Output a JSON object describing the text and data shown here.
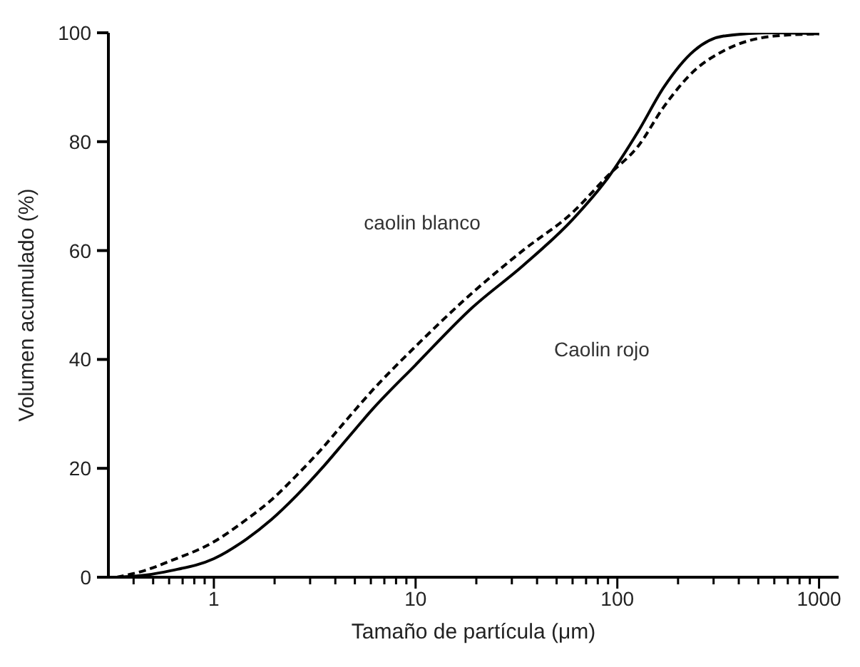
{
  "chart_data": {
    "type": "line",
    "xlabel": "Tamaño de partícula (μm)",
    "ylabel": "Volumen acumulado (%)",
    "log": "x",
    "grid": false,
    "legend": false,
    "marker": "none",
    "xlim": [
      0.3,
      1250
    ],
    "ylim": [
      0,
      100
    ],
    "xticks": [
      {
        "value": 0.4,
        "label": null
      },
      {
        "value": 0.5,
        "label": null
      },
      {
        "value": 0.6,
        "label": null
      },
      {
        "value": 0.7,
        "label": null
      },
      {
        "value": 0.8,
        "label": null
      },
      {
        "value": 0.9,
        "label": null
      },
      1,
      {
        "value": 2,
        "label": null
      },
      {
        "value": 3,
        "label": null
      },
      {
        "value": 4,
        "label": null
      },
      {
        "value": 5,
        "label": null
      },
      {
        "value": 6,
        "label": null
      },
      {
        "value": 7,
        "label": null
      },
      {
        "value": 8,
        "label": null
      },
      {
        "value": 9,
        "label": null
      },
      10,
      {
        "value": 20,
        "label": null
      },
      {
        "value": 30,
        "label": null
      },
      {
        "value": 40,
        "label": null
      },
      {
        "value": 50,
        "label": null
      },
      {
        "value": 60,
        "label": null
      },
      {
        "value": 70,
        "label": null
      },
      {
        "value": 80,
        "label": null
      },
      {
        "value": 90,
        "label": null
      },
      100,
      {
        "value": 200,
        "label": null
      },
      {
        "value": 300,
        "label": null
      },
      {
        "value": 400,
        "label": null
      },
      {
        "value": 500,
        "label": null
      },
      {
        "value": 600,
        "label": null
      },
      {
        "value": 700,
        "label": null
      },
      {
        "value": 800,
        "label": null
      },
      {
        "value": 900,
        "label": null
      },
      1000
    ],
    "yticks": [
      0,
      20,
      40,
      60,
      80,
      100
    ],
    "series": [
      {
        "color": "#000000",
        "line_style": "solid",
        "x": [
          0.33,
          0.46,
          0.61,
          1,
          1.45,
          1.93,
          2.57,
          3.43,
          4.57,
          6.1,
          10,
          19.2,
          34,
          60,
          90,
          127,
          170,
          240,
          337,
          600,
          1000
        ],
        "values": [
          0,
          0.4,
          1.2,
          3.4,
          7,
          10.6,
          15,
          20,
          25.4,
          30.8,
          39,
          49.6,
          57.2,
          65.7,
          73.4,
          81.9,
          90,
          96.7,
          99.4,
          100,
          99.8
        ]
      },
      {
        "color": "#000000",
        "line_style": "dashed",
        "x": [
          0.33,
          0.46,
          0.61,
          1,
          1.45,
          1.93,
          2.57,
          3.43,
          4.57,
          6.1,
          10,
          19.2,
          34,
          60,
          90,
          127,
          170,
          240,
          337,
          600,
          1000
        ],
        "values": [
          0,
          1.3,
          3,
          6.5,
          10.6,
          14.2,
          18.7,
          23.6,
          29,
          34.3,
          42.4,
          52.3,
          60,
          67,
          73.8,
          79.2,
          86.4,
          93,
          96.7,
          99.4,
          99.8
        ]
      }
    ],
    "annotations": [
      "caolin blanco",
      "Caolin rojo"
    ]
  }
}
